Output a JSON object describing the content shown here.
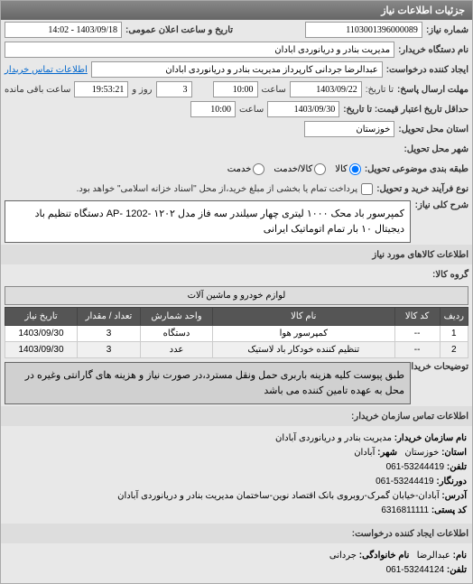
{
  "panel_title": "جزئیات اطلاعات نیاز",
  "labels": {
    "need_number": "شماره نیاز:",
    "announce_date": "تاریخ و ساعت اعلان عمومی:",
    "buyer_org": "نام دستگاه خریدار:",
    "creator": "ایجاد کننده درخواست:",
    "contact_link": "اطلاعات تماس خریدار",
    "deadline_send": "مهلت ارسال پاسخ:",
    "to_date": "تا تاریخ:",
    "saat": "ساعت",
    "rooz_va": "روز و",
    "saat_remain": "ساعت باقی مانده",
    "min_valid": "حداقل تاریخ اعتبار قیمت: تا تاریخ:",
    "province": "استان محل تحویل:",
    "city": "شهر محل تحویل:",
    "delivery_group": "طبقه بندی موضوعی تحویل:",
    "process_type": "نوع فرآیند خرید و تحویل:",
    "process_note": "پرداخت تمام یا بخشی از مبلغ خرید،از محل \"اسناد خزانه اسلامی\" خواهد بود.",
    "desc_title": "شرح کلی نیاز:",
    "goods_title": "اطلاعات کالاهای مورد نیاز",
    "category": "گروه کالا:",
    "notes_title": "توضیحات خریدار:",
    "contact_section": "اطلاعات تماس سازمان خریدار:",
    "org_name_l": "نام سازمان خریدار:",
    "province_l": "استان:",
    "city_l": "شهر:",
    "tel_l": "تلفن:",
    "fax_l": "دورنگار:",
    "address_l": "آدرس:",
    "postal_l": "کد پستی:",
    "req_creator_section": "اطلاعات ایجاد کننده درخواست:",
    "name_l": "نام:",
    "family_l": "نام خانوادگی:"
  },
  "values": {
    "need_number": "1103001396000089",
    "announce_date": "1403/09/18 - 14:02",
    "buyer_org": "مدیریت بنادر و دریانوردی آبادان",
    "creator": "عبدالرضا جردانی کارپرداز مدیریت بنادر و دریانوردی آبادان",
    "deadline_date": "1403/09/22",
    "deadline_time": "10:00",
    "remain_days": "3",
    "remain_time": "19:53:21",
    "valid_date": "1403/09/30",
    "valid_time": "10:00",
    "province": "خوزستان",
    "desc": "کمپرسور باد محک ۱۰۰۰ لیتری چهار سیلندر سه فاز مدل ۱۲۰۲ -AP- 1202 دستگاه تنظیم باد دیجیتال ۱۰ بار تمام اتوماتیک ایرانی",
    "category": "لوازم خودرو و ماشین آلات",
    "notes": "طبق پیوست کلیه هزینه باربری حمل ونقل مسترد،در صورت نیاز و هزینه های گارانتی وغیره در محل به عهده تامین کننده می باشد",
    "org_name": "مدیریت بنادر و دریانوردی آبادان",
    "org_province": "خوزستان",
    "org_city": "آبادان",
    "org_tel": "53244419-061",
    "org_fax": "53244419-061",
    "org_address": "آبادان-خیابان گمرک-روبروی بانک اقتصاد نوین-ساختمان مدیریت بنادر و دریانوردی آبادان",
    "org_postal": "6316811111",
    "req_name": "عبدالرضا",
    "req_family": "جردانی",
    "req_tel": "53244124-061"
  },
  "radios": {
    "kala": "کالا",
    "kala_khadamat": "کالا/خدمت",
    "khadamat": "خدمت"
  },
  "table": {
    "headers": [
      "ردیف",
      "کد کالا",
      "نام کالا",
      "واحد شمارش",
      "تعداد / مقدار",
      "تاریخ نیاز"
    ],
    "rows": [
      [
        "1",
        "--",
        "کمپرسور هوا",
        "دستگاه",
        "3",
        "1403/09/30"
      ],
      [
        "2",
        "--",
        "تنظیم کننده خودکار باد لاستیک",
        "عدد",
        "3",
        "1403/09/30"
      ]
    ]
  },
  "col_widths": [
    "30px",
    "50px",
    "auto",
    "80px",
    "70px",
    "80px"
  ]
}
